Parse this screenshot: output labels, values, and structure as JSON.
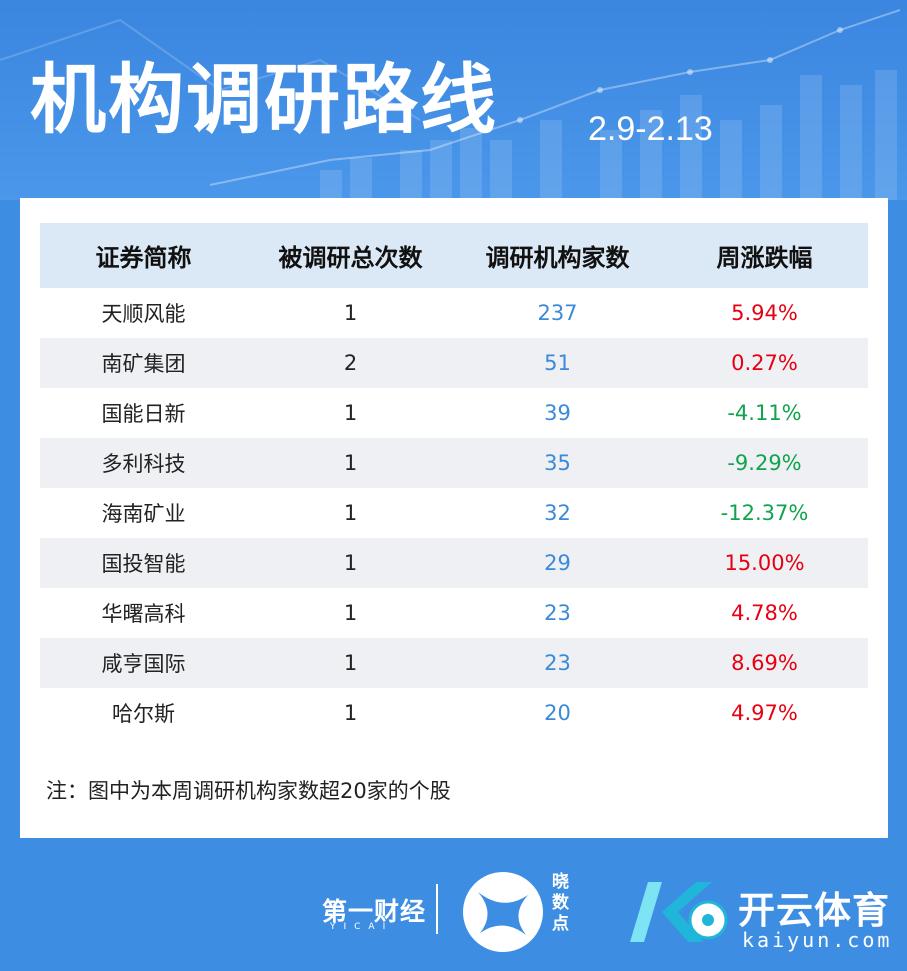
{
  "header": {
    "title": "机构调研路线",
    "date_range": "2.9-2.13"
  },
  "table": {
    "columns": [
      "证券简称",
      "被调研总次数",
      "调研机构家数",
      "周涨跌幅"
    ],
    "rows": [
      {
        "name": "天顺风能",
        "times": "1",
        "institutions": "237",
        "change": "5.94%",
        "dir": "up"
      },
      {
        "name": "南矿集团",
        "times": "2",
        "institutions": "51",
        "change": "0.27%",
        "dir": "up"
      },
      {
        "name": "国能日新",
        "times": "1",
        "institutions": "39",
        "change": "-4.11%",
        "dir": "down"
      },
      {
        "name": "多利科技",
        "times": "1",
        "institutions": "35",
        "change": "-9.29%",
        "dir": "down"
      },
      {
        "name": "海南矿业",
        "times": "1",
        "institutions": "32",
        "change": "-12.37%",
        "dir": "down"
      },
      {
        "name": "国投智能",
        "times": "1",
        "institutions": "29",
        "change": "15.00%",
        "dir": "up"
      },
      {
        "name": "华曙高科",
        "times": "1",
        "institutions": "23",
        "change": "4.78%",
        "dir": "up"
      },
      {
        "name": "咸亨国际",
        "times": "1",
        "institutions": "23",
        "change": "8.69%",
        "dir": "up"
      },
      {
        "name": "哈尔斯",
        "times": "1",
        "institutions": "20",
        "change": "4.97%",
        "dir": "up"
      }
    ]
  },
  "note": "注：图中为本周调研机构家数超20家的个股",
  "footer": {
    "yicai_logo": "第一财经",
    "yicai_sub": "YICAI",
    "xs_logo_text": "晓数点",
    "kaiyun_name": "开云体育",
    "kaiyun_url": "kaiyun.com"
  },
  "colors": {
    "background": "#3d8ee3",
    "header_row": "#dbe9f6",
    "alt_row": "#eef0f3",
    "up": "#e60012",
    "down": "#11a34d",
    "institutions": "#3b8ad8"
  }
}
